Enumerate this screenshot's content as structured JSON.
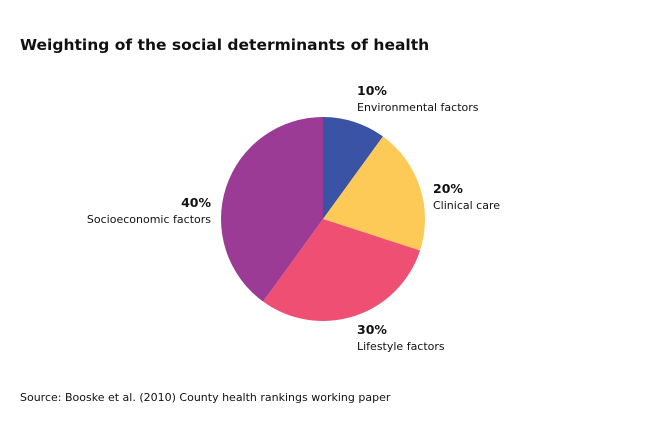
{
  "chart_data": {
    "type": "pie",
    "title": "Weighting of the social determinants of health",
    "categories": [
      "Environmental factors",
      "Clinical care",
      "Lifestyle factors",
      "Socioeconomic factors"
    ],
    "values": [
      10,
      20,
      30,
      40
    ],
    "value_labels": [
      "10%",
      "20%",
      "30%",
      "40%"
    ],
    "colors": [
      "#3b53a5",
      "#fdc957",
      "#ef4f72",
      "#9b3b96"
    ],
    "source": "Source: Booske et al. (2010) County health rankings working paper"
  }
}
